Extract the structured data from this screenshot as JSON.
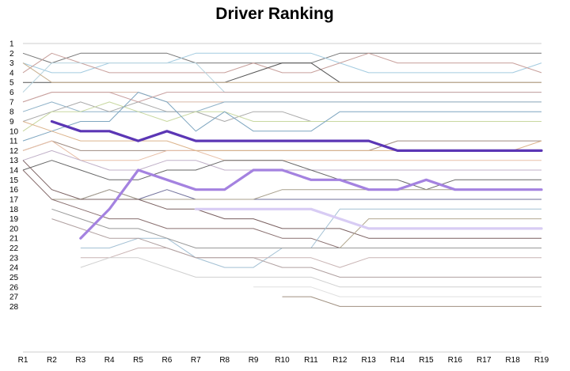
{
  "chart_data": {
    "type": "line",
    "title": "Driver Ranking",
    "xlabel": "",
    "ylabel": "",
    "categories": [
      "R1",
      "R2",
      "R3",
      "R4",
      "R5",
      "R6",
      "R7",
      "R8",
      "R9",
      "R10",
      "R11",
      "R12",
      "R13",
      "R14",
      "R15",
      "R16",
      "R17",
      "R18",
      "R19"
    ],
    "y_ticks": [
      "1",
      "2",
      "3",
      "4",
      "5",
      "6",
      "7",
      "8",
      "9",
      "10",
      "11",
      "12",
      "13",
      "14",
      "15",
      "16",
      "17",
      "18",
      "19",
      "20",
      "21",
      "22",
      "23",
      "24",
      "25",
      "26",
      "27",
      "28"
    ],
    "y_inverted": true,
    "grid": true,
    "highlight_series": [
      {
        "color": "#5b36b5",
        "width": 3.2,
        "values": [
          null,
          9,
          10,
          10,
          11,
          10,
          11,
          11,
          11,
          11,
          11,
          11,
          11,
          12,
          12,
          12,
          12,
          12,
          12
        ]
      },
      {
        "color": "#a482e0",
        "width": 3.2,
        "values": [
          null,
          null,
          21,
          18,
          14,
          15,
          16,
          16,
          14,
          14,
          15,
          15,
          16,
          16,
          15,
          16,
          16,
          16,
          16
        ]
      },
      {
        "color": "#d8ccf4",
        "width": 3.2,
        "values": [
          null,
          null,
          null,
          null,
          null,
          null,
          18,
          18,
          18,
          18,
          18,
          19,
          20,
          20,
          20,
          20,
          20,
          20,
          20
        ]
      }
    ],
    "background_series": [
      {
        "color": "#777777",
        "values": [
          2,
          3,
          2,
          2,
          2,
          2,
          3,
          3,
          3,
          3,
          3,
          2,
          2,
          2,
          2,
          2,
          2,
          2,
          2
        ]
      },
      {
        "color": "#a3cbe0",
        "values": [
          3,
          4,
          4,
          3,
          3,
          3,
          2,
          2,
          2,
          2,
          2,
          3,
          4,
          4,
          4,
          4,
          4,
          4,
          3
        ]
      },
      {
        "color": "#c8a09c",
        "values": [
          4,
          2,
          3,
          4,
          4,
          4,
          4,
          4,
          3,
          4,
          4,
          3,
          2,
          3,
          3,
          3,
          3,
          3,
          4
        ]
      },
      {
        "color": "#555555",
        "values": [
          5,
          5,
          5,
          5,
          5,
          5,
          5,
          5,
          4,
          3,
          3,
          5,
          5,
          5,
          5,
          5,
          5,
          5,
          5
        ]
      },
      {
        "color": "#b8d4df",
        "values": [
          6,
          3,
          3,
          3,
          3,
          3,
          3,
          6,
          6,
          6,
          6,
          6,
          6,
          6,
          6,
          6,
          6,
          6,
          6
        ]
      },
      {
        "color": "#d8b8a8",
        "values": [
          7,
          6,
          6,
          6,
          6,
          7,
          7,
          7,
          7,
          7,
          7,
          7,
          7,
          7,
          7,
          7,
          7,
          7,
          7
        ]
      },
      {
        "color": "#8fb2c8",
        "values": [
          8,
          7,
          8,
          8,
          8,
          8,
          8,
          7,
          7,
          7,
          7,
          7,
          7,
          7,
          7,
          7,
          7,
          7,
          7
        ]
      },
      {
        "color": "#aaaaaa",
        "values": [
          9,
          8,
          7,
          8,
          7,
          8,
          8,
          9,
          8,
          8,
          9,
          9,
          9,
          9,
          9,
          9,
          9,
          9,
          9
        ]
      },
      {
        "color": "#c8d8a0",
        "values": [
          10,
          8,
          8,
          7,
          8,
          9,
          8,
          8,
          9,
          9,
          9,
          9,
          9,
          9,
          9,
          9,
          9,
          9,
          9
        ]
      },
      {
        "color": "#7ea6c0",
        "values": [
          11,
          10,
          9,
          9,
          6,
          7,
          10,
          8,
          10,
          10,
          10,
          8,
          8,
          8,
          8,
          8,
          8,
          8,
          8
        ]
      },
      {
        "color": "#9f8b80",
        "values": [
          12,
          11,
          12,
          12,
          12,
          12,
          12,
          12,
          12,
          12,
          12,
          12,
          12,
          11,
          11,
          11,
          11,
          11,
          11
        ]
      },
      {
        "color": "#e8c0a8",
        "values": [
          12,
          11,
          13,
          13,
          13,
          12,
          12,
          13,
          13,
          13,
          13,
          13,
          13,
          13,
          13,
          13,
          13,
          13,
          13
        ]
      },
      {
        "color": "#c0b0c8",
        "values": [
          13,
          12,
          13,
          14,
          14,
          13,
          13,
          14,
          14,
          14,
          14,
          14,
          14,
          14,
          14,
          14,
          14,
          14,
          14
        ]
      },
      {
        "color": "#666666",
        "values": [
          14,
          13,
          14,
          15,
          15,
          14,
          14,
          13,
          13,
          13,
          14,
          15,
          15,
          15,
          16,
          15,
          15,
          15,
          15
        ]
      },
      {
        "color": "#6f6f9a",
        "values": [
          null,
          null,
          17,
          16,
          17,
          16,
          17,
          17,
          17,
          17,
          17,
          17,
          17,
          17,
          17,
          17,
          17,
          17,
          17
        ]
      },
      {
        "color": "#a8a08c",
        "values": [
          null,
          17,
          17,
          16,
          17,
          17,
          17,
          17,
          17,
          16,
          16,
          16,
          16,
          16,
          16,
          16,
          16,
          16,
          16
        ]
      },
      {
        "color": "#7a6060",
        "values": [
          13,
          16,
          17,
          17,
          17,
          18,
          18,
          19,
          19,
          20,
          20,
          20,
          21,
          21,
          21,
          21,
          21,
          21,
          21
        ]
      },
      {
        "color": "#8a7070",
        "values": [
          14,
          17,
          18,
          19,
          19,
          20,
          20,
          20,
          20,
          21,
          21,
          22,
          22,
          22,
          22,
          22,
          22,
          22,
          22
        ]
      },
      {
        "color": "#a3c0d4",
        "values": [
          null,
          null,
          22,
          22,
          21,
          21,
          23,
          24,
          24,
          22,
          22,
          18,
          18,
          18,
          18,
          18,
          18,
          18,
          18
        ]
      },
      {
        "color": "#c9b4b4",
        "values": [
          null,
          null,
          23,
          23,
          22,
          22,
          23,
          23,
          23,
          23,
          23,
          24,
          23,
          23,
          23,
          23,
          23,
          23,
          23
        ]
      },
      {
        "color": "#999999",
        "values": [
          null,
          18,
          19,
          20,
          20,
          21,
          22,
          22,
          22,
          22,
          22,
          22,
          22,
          22,
          22,
          22,
          22,
          22,
          22
        ]
      },
      {
        "color": "#b0a0a0",
        "values": [
          null,
          19,
          20,
          21,
          21,
          22,
          23,
          23,
          23,
          24,
          24,
          25,
          25,
          25,
          25,
          25,
          25,
          25,
          25
        ]
      },
      {
        "color": "#d0d0d0",
        "values": [
          null,
          null,
          24,
          23,
          23,
          24,
          25,
          25,
          25,
          25,
          25,
          26,
          26,
          26,
          26,
          26,
          26,
          26,
          26
        ]
      },
      {
        "color": "#b3a890",
        "values": [
          null,
          null,
          null,
          null,
          null,
          null,
          null,
          null,
          null,
          null,
          null,
          22,
          19,
          19,
          19,
          19,
          19,
          19,
          19
        ]
      },
      {
        "color": "#e0e0e0",
        "values": [
          null,
          null,
          null,
          null,
          null,
          null,
          null,
          null,
          26,
          26,
          26,
          27,
          27,
          27,
          27,
          27,
          27,
          27,
          27
        ]
      },
      {
        "color": "#a09080",
        "values": [
          null,
          null,
          null,
          null,
          null,
          null,
          null,
          null,
          null,
          27,
          27,
          28,
          28,
          28,
          28,
          28,
          28,
          28,
          28
        ]
      },
      {
        "color": "#c8b090",
        "values": [
          3,
          5,
          5,
          5,
          5,
          5,
          5,
          5,
          5,
          5,
          5,
          5,
          5,
          5,
          5,
          5,
          5,
          5,
          5
        ]
      },
      {
        "color": "#c8a0a0",
        "values": [
          7,
          6,
          6,
          6,
          7,
          6,
          6,
          6,
          6,
          6,
          6,
          6,
          6,
          6,
          6,
          6,
          6,
          6,
          6
        ]
      },
      {
        "color": "#dcb48c",
        "values": [
          9,
          10,
          11,
          11,
          11,
          11,
          12,
          12,
          12,
          12,
          12,
          12,
          12,
          12,
          12,
          12,
          12,
          12,
          11
        ]
      }
    ]
  }
}
